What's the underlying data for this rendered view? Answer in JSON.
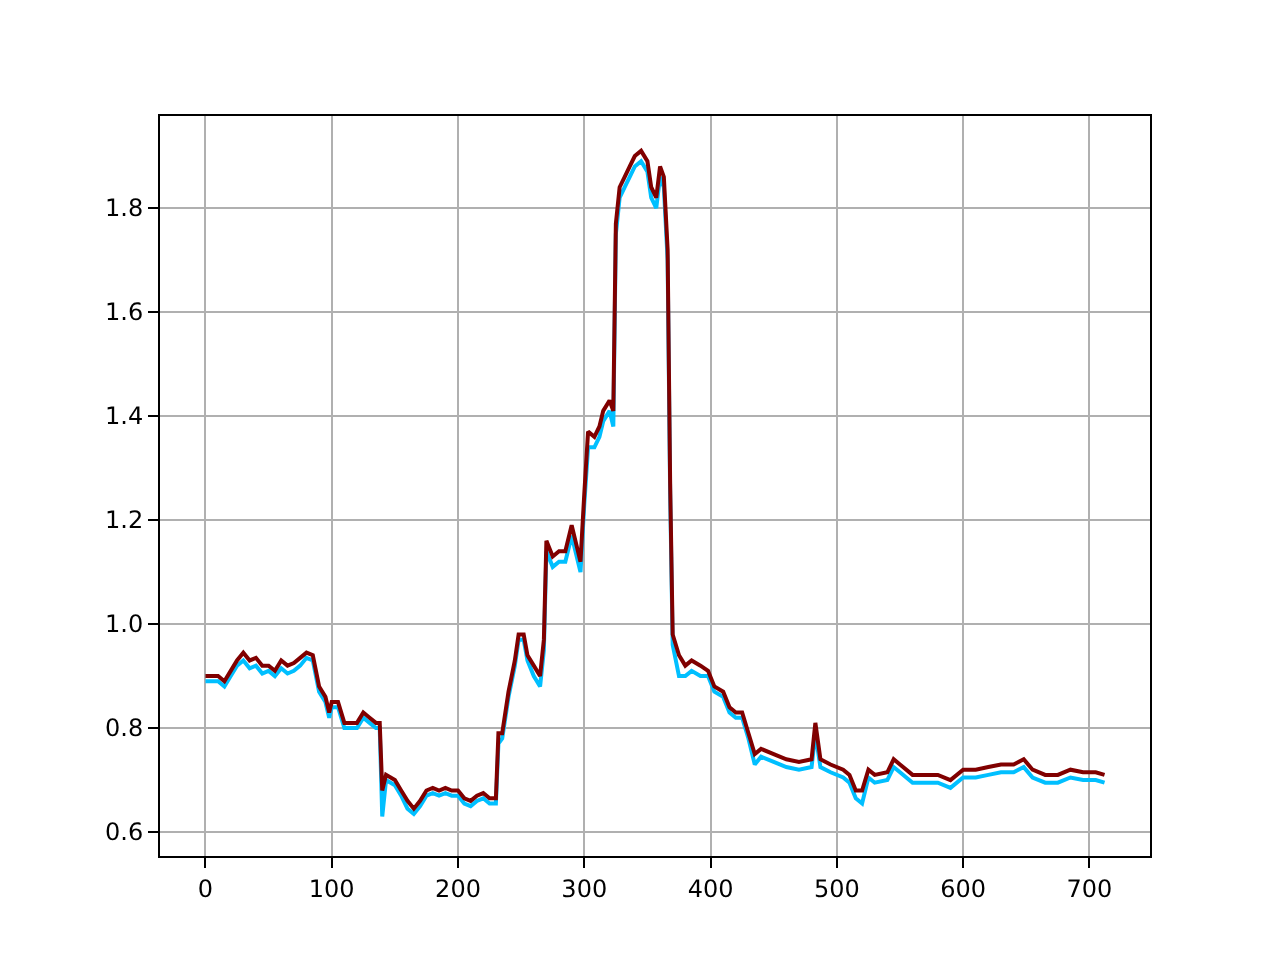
{
  "chart_data": {
    "type": "line",
    "x": [
      0,
      10,
      15,
      20,
      25,
      30,
      35,
      40,
      45,
      50,
      55,
      60,
      65,
      70,
      75,
      80,
      85,
      90,
      95,
      98,
      100,
      105,
      110,
      115,
      120,
      125,
      130,
      135,
      138,
      140,
      143,
      150,
      155,
      160,
      165,
      170,
      175,
      180,
      185,
      190,
      195,
      200,
      205,
      210,
      215,
      220,
      225,
      230,
      232,
      235,
      240,
      245,
      248,
      252,
      255,
      260,
      265,
      268,
      270,
      275,
      280,
      285,
      290,
      293,
      297,
      300,
      303,
      308,
      312,
      315,
      320,
      323,
      325,
      328,
      332,
      336,
      340,
      345,
      350,
      353,
      357,
      360,
      363,
      366,
      368,
      370,
      375,
      380,
      385,
      392,
      398,
      403,
      410,
      415,
      420,
      425,
      430,
      435,
      440,
      450,
      460,
      470,
      480,
      483,
      487,
      495,
      505,
      510,
      515,
      520,
      525,
      530,
      540,
      545,
      550,
      560,
      570,
      580,
      590,
      600,
      610,
      620,
      630,
      640,
      648,
      655,
      665,
      675,
      685,
      695,
      705,
      712
    ],
    "series": [
      {
        "color": "#00bfff",
        "values": [
          0.89,
          0.89,
          0.88,
          0.9,
          0.92,
          0.93,
          0.915,
          0.92,
          0.905,
          0.91,
          0.9,
          0.915,
          0.905,
          0.91,
          0.92,
          0.935,
          0.93,
          0.87,
          0.85,
          0.82,
          0.84,
          0.84,
          0.8,
          0.8,
          0.8,
          0.82,
          0.81,
          0.8,
          0.8,
          0.63,
          0.7,
          0.69,
          0.67,
          0.645,
          0.635,
          0.65,
          0.67,
          0.675,
          0.67,
          0.675,
          0.67,
          0.67,
          0.655,
          0.65,
          0.66,
          0.665,
          0.655,
          0.655,
          0.77,
          0.78,
          0.86,
          0.92,
          0.97,
          0.97,
          0.93,
          0.9,
          0.88,
          0.95,
          1.14,
          1.11,
          1.12,
          1.12,
          1.17,
          1.14,
          1.1,
          1.23,
          1.34,
          1.34,
          1.36,
          1.39,
          1.41,
          1.38,
          1.75,
          1.82,
          1.84,
          1.86,
          1.88,
          1.89,
          1.87,
          1.82,
          1.8,
          1.86,
          1.84,
          1.7,
          1.25,
          0.96,
          0.9,
          0.9,
          0.91,
          0.9,
          0.9,
          0.87,
          0.86,
          0.83,
          0.82,
          0.82,
          0.78,
          0.73,
          0.745,
          0.735,
          0.725,
          0.72,
          0.725,
          0.79,
          0.725,
          0.715,
          0.705,
          0.695,
          0.665,
          0.655,
          0.705,
          0.695,
          0.7,
          0.725,
          0.715,
          0.695,
          0.695,
          0.695,
          0.685,
          0.705,
          0.705,
          0.71,
          0.715,
          0.715,
          0.725,
          0.705,
          0.695,
          0.695,
          0.705,
          0.7,
          0.7,
          0.695
        ]
      },
      {
        "color": "#800000",
        "values": [
          0.9,
          0.9,
          0.89,
          0.91,
          0.93,
          0.945,
          0.93,
          0.935,
          0.92,
          0.92,
          0.91,
          0.93,
          0.92,
          0.925,
          0.935,
          0.945,
          0.94,
          0.88,
          0.86,
          0.83,
          0.85,
          0.85,
          0.81,
          0.81,
          0.81,
          0.83,
          0.82,
          0.81,
          0.81,
          0.68,
          0.71,
          0.7,
          0.68,
          0.66,
          0.645,
          0.66,
          0.68,
          0.685,
          0.68,
          0.685,
          0.68,
          0.68,
          0.665,
          0.66,
          0.67,
          0.675,
          0.665,
          0.665,
          0.79,
          0.79,
          0.87,
          0.93,
          0.98,
          0.98,
          0.94,
          0.92,
          0.9,
          0.97,
          1.16,
          1.13,
          1.14,
          1.14,
          1.19,
          1.16,
          1.12,
          1.25,
          1.37,
          1.36,
          1.38,
          1.41,
          1.43,
          1.41,
          1.77,
          1.84,
          1.86,
          1.88,
          1.9,
          1.91,
          1.89,
          1.84,
          1.82,
          1.88,
          1.86,
          1.72,
          1.27,
          0.98,
          0.94,
          0.92,
          0.93,
          0.92,
          0.91,
          0.88,
          0.87,
          0.84,
          0.83,
          0.83,
          0.79,
          0.75,
          0.76,
          0.75,
          0.74,
          0.735,
          0.74,
          0.81,
          0.74,
          0.73,
          0.72,
          0.71,
          0.68,
          0.68,
          0.72,
          0.71,
          0.715,
          0.74,
          0.73,
          0.71,
          0.71,
          0.71,
          0.7,
          0.72,
          0.72,
          0.725,
          0.73,
          0.73,
          0.74,
          0.72,
          0.71,
          0.71,
          0.72,
          0.715,
          0.715,
          0.71
        ]
      }
    ],
    "xlim": [
      -36,
      748
    ],
    "ylim": [
      0.554,
      1.977
    ],
    "xticks": [
      0,
      100,
      200,
      300,
      400,
      500,
      600,
      700
    ],
    "yticks": [
      {
        "value": 0.6,
        "label": "0.6"
      },
      {
        "value": 0.8,
        "label": "0.8"
      },
      {
        "value": 1.0,
        "label": "1.0"
      },
      {
        "value": 1.2,
        "label": "1.2"
      },
      {
        "value": 1.4,
        "label": "1.4"
      },
      {
        "value": 1.6,
        "label": "1.6"
      },
      {
        "value": 1.8,
        "label": "1.8"
      }
    ],
    "grid": true,
    "marker": "none",
    "line_style": "solid"
  }
}
